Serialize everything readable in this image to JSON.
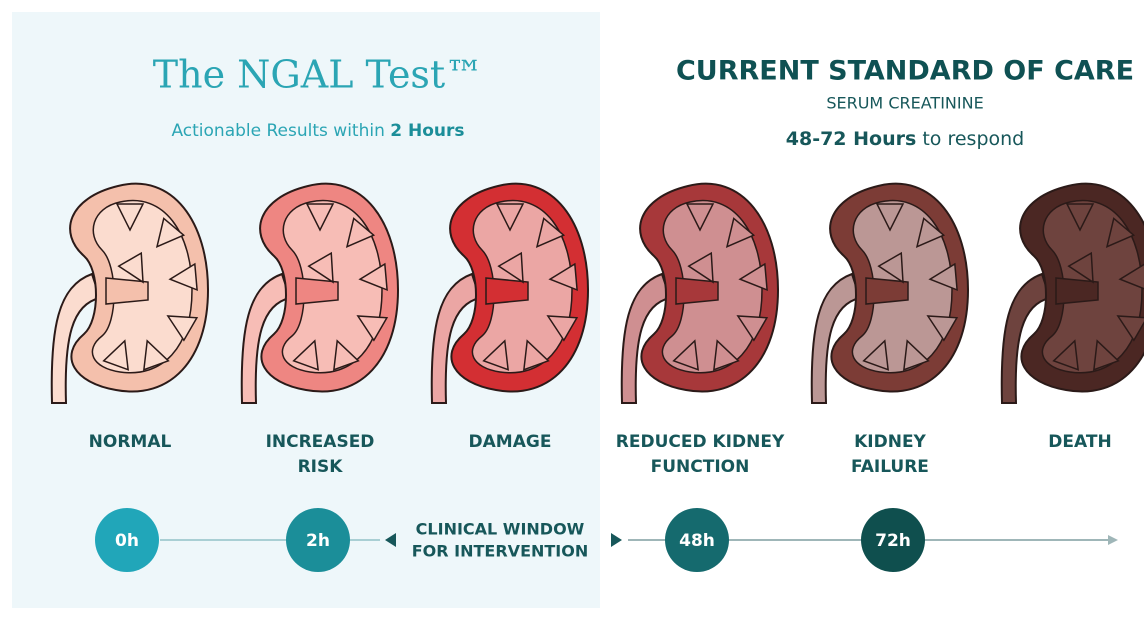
{
  "left_header": {
    "title": "The NGAL Test™",
    "subtitle": "Actionable Results within",
    "subtitle_bold": "2 Hours"
  },
  "right_header": {
    "title": "CURRENT STANDARD OF CARE",
    "subtitle": "SERUM CREATININE",
    "note_bold": "48-72 Hours",
    "note": "to respond"
  },
  "stages": [
    {
      "label": [
        "NORMAL"
      ],
      "color": "#f4c0ac",
      "inner": "#fbdccf"
    },
    {
      "label": [
        "INCREASED",
        "RISK"
      ],
      "color": "#ee8682",
      "inner": "#f7bdb6"
    },
    {
      "label": [
        "DAMAGE"
      ],
      "color": "#d32f33",
      "inner": "#eba6a4"
    },
    {
      "label": [
        "REDUCED KIDNEY",
        "FUNCTION"
      ],
      "color": "#a7383a",
      "inner": "#cf8f91"
    },
    {
      "label": [
        "KIDNEY",
        "FAILURE"
      ],
      "color": "#7c3c36",
      "inner": "#bb9795"
    },
    {
      "label": [
        "DEATH"
      ],
      "color": "#4b2723",
      "inner": "#6e433e"
    }
  ],
  "timeline": {
    "markers": [
      {
        "label": "0h",
        "color": "#21a6b9"
      },
      {
        "label": "2h",
        "color": "#1b8e99"
      },
      {
        "label": "48h",
        "color": "#156a6e"
      },
      {
        "label": "72h",
        "color": "#0f4f4e"
      }
    ],
    "window": [
      "CLINICAL  WINDOW",
      "FOR INTERVENTION"
    ]
  }
}
